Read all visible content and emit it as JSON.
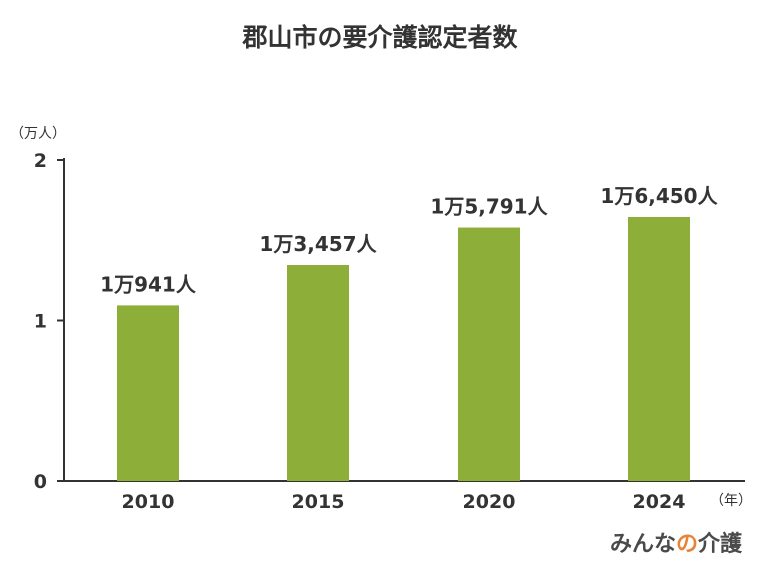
{
  "title": "郡山市の要介護認定者数",
  "logo": {
    "part1": "みんな",
    "part2": "の",
    "part3": "介護"
  },
  "colors": {
    "bar": "#8dae38",
    "axis": "#333333",
    "accent": "#e8843a"
  },
  "chart_data": {
    "type": "bar",
    "title": "郡山市の要介護認定者数",
    "categories": [
      "2010",
      "2015",
      "2020",
      "2024"
    ],
    "values": [
      10941,
      13457,
      15791,
      16450
    ],
    "data_labels": [
      "1万941人",
      "1万3,457人",
      "1万5,791人",
      "1万6,450人"
    ],
    "y_unit_label": "（万人）",
    "x_unit_label": "（年）",
    "y_ticks": [
      {
        "value": 0,
        "label": "0"
      },
      {
        "value": 10000,
        "label": "1"
      },
      {
        "value": 20000,
        "label": "2"
      }
    ],
    "ylim": [
      0,
      20000
    ],
    "grid": false,
    "legend": "none"
  }
}
